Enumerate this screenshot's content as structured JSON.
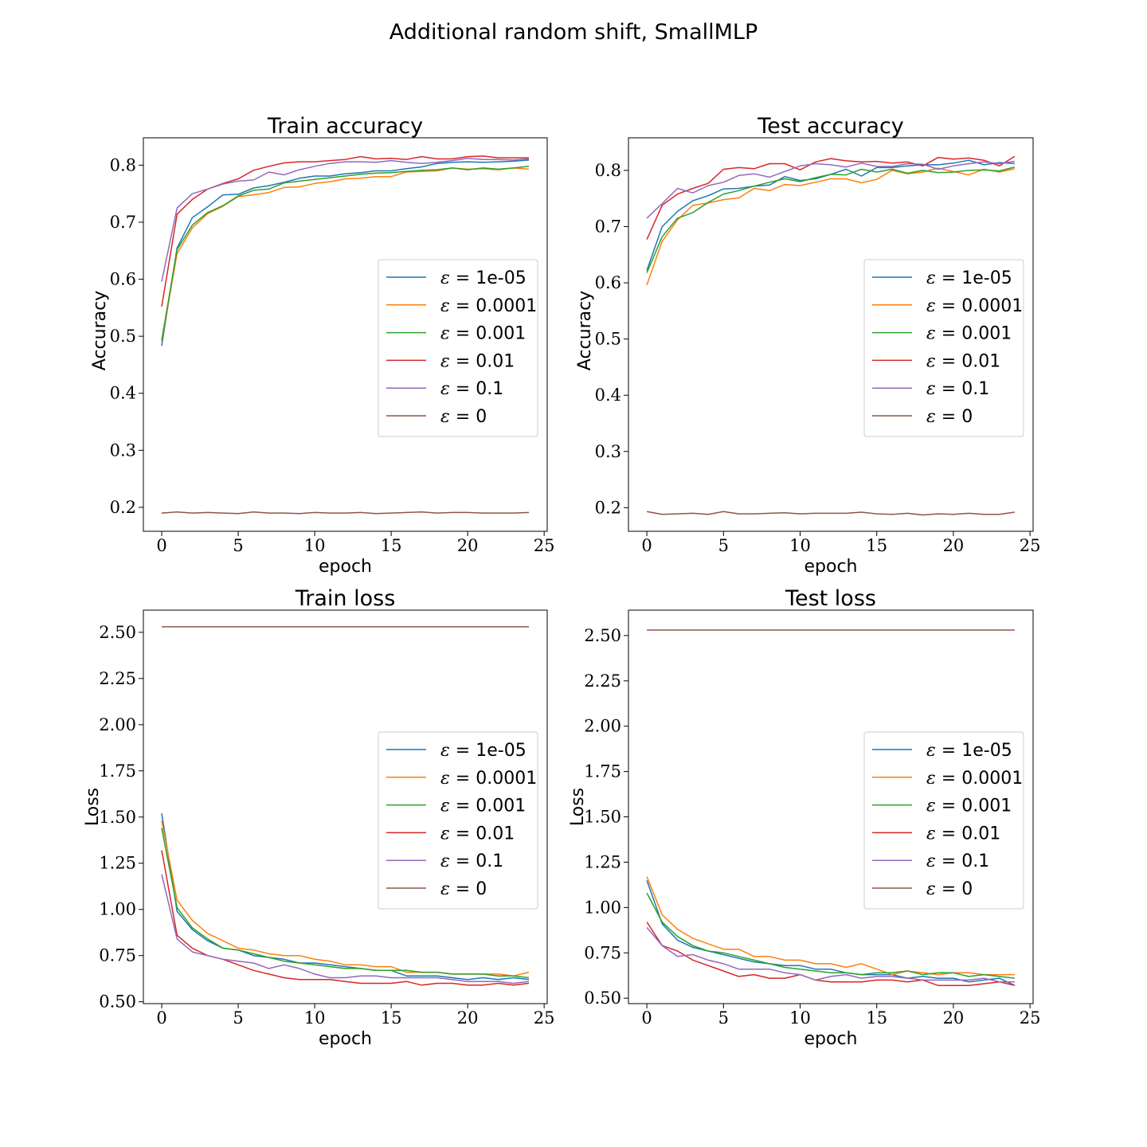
{
  "figure": {
    "title": "Additional random shift, SmallMLP"
  },
  "legend_entries": [
    {
      "symbol": "ε",
      "eq": " = ",
      "value": "1e-05",
      "color": "#1f77b4"
    },
    {
      "symbol": "ε",
      "eq": " = ",
      "value": "0.0001",
      "color": "#ff7f0e"
    },
    {
      "symbol": "ε",
      "eq": " = ",
      "value": "0.001",
      "color": "#2ca02c"
    },
    {
      "symbol": "ε",
      "eq": " = ",
      "value": "0.01",
      "color": "#d62728"
    },
    {
      "symbol": "ε",
      "eq": " = ",
      "value": "0.1",
      "color": "#9467bd"
    },
    {
      "symbol": "ε",
      "eq": " = ",
      "value": "0",
      "color": "#8c564b"
    }
  ],
  "chart_data": [
    {
      "id": "train_acc",
      "type": "line",
      "title": "Train accuracy",
      "xlabel": "epoch",
      "ylabel": "Accuracy",
      "xlim": [
        -1.2,
        25.2
      ],
      "ylim": [
        0.158,
        0.848
      ],
      "xticks": [
        0,
        5,
        10,
        15,
        20,
        25
      ],
      "yticks": [
        0.2,
        0.3,
        0.4,
        0.5,
        0.6,
        0.7,
        0.8
      ],
      "ytick_labels": [
        "0.2",
        "0.3",
        "0.4",
        "0.5",
        "0.6",
        "0.7",
        "0.8"
      ],
      "legend": "center-right",
      "x": [
        0,
        1,
        2,
        3,
        4,
        5,
        6,
        7,
        8,
        9,
        10,
        11,
        12,
        13,
        14,
        15,
        16,
        17,
        18,
        19,
        20,
        21,
        22,
        23,
        24
      ],
      "series": [
        {
          "name": "1e-05",
          "color": "#1f77b4",
          "values": [
            0.483,
            0.655,
            0.708,
            0.727,
            0.748,
            0.749,
            0.76,
            0.764,
            0.77,
            0.777,
            0.781,
            0.781,
            0.785,
            0.787,
            0.79,
            0.79,
            0.794,
            0.797,
            0.803,
            0.805,
            0.806,
            0.805,
            0.806,
            0.807,
            0.809
          ]
        },
        {
          "name": "0.0001",
          "color": "#ff7f0e",
          "values": [
            0.49,
            0.645,
            0.69,
            0.715,
            0.728,
            0.745,
            0.748,
            0.752,
            0.761,
            0.762,
            0.768,
            0.771,
            0.776,
            0.777,
            0.78,
            0.78,
            0.788,
            0.789,
            0.79,
            0.795,
            0.793,
            0.794,
            0.792,
            0.795,
            0.793
          ]
        },
        {
          "name": "0.001",
          "color": "#2ca02c",
          "values": [
            0.493,
            0.652,
            0.695,
            0.717,
            0.729,
            0.746,
            0.756,
            0.758,
            0.769,
            0.772,
            0.775,
            0.778,
            0.781,
            0.784,
            0.786,
            0.787,
            0.789,
            0.791,
            0.792,
            0.795,
            0.792,
            0.795,
            0.793,
            0.795,
            0.798
          ]
        },
        {
          "name": "0.01",
          "color": "#d62728",
          "values": [
            0.552,
            0.714,
            0.74,
            0.758,
            0.768,
            0.776,
            0.791,
            0.798,
            0.804,
            0.806,
            0.806,
            0.808,
            0.81,
            0.815,
            0.811,
            0.812,
            0.81,
            0.815,
            0.811,
            0.811,
            0.815,
            0.816,
            0.813,
            0.813,
            0.813
          ]
        },
        {
          "name": "0.1",
          "color": "#9467bd",
          "values": [
            0.596,
            0.725,
            0.75,
            0.758,
            0.767,
            0.772,
            0.774,
            0.788,
            0.783,
            0.792,
            0.798,
            0.803,
            0.806,
            0.806,
            0.805,
            0.808,
            0.805,
            0.803,
            0.805,
            0.808,
            0.812,
            0.81,
            0.81,
            0.809,
            0.811
          ]
        },
        {
          "name": "0",
          "color": "#8c564b",
          "values": [
            0.19,
            0.192,
            0.19,
            0.191,
            0.19,
            0.189,
            0.192,
            0.19,
            0.19,
            0.189,
            0.191,
            0.19,
            0.19,
            0.191,
            0.189,
            0.19,
            0.191,
            0.192,
            0.19,
            0.191,
            0.191,
            0.19,
            0.19,
            0.19,
            0.191
          ]
        }
      ]
    },
    {
      "id": "test_acc",
      "type": "line",
      "title": "Test accuracy",
      "xlabel": "epoch",
      "ylabel": "Accuracy",
      "xlim": [
        -1.2,
        25.2
      ],
      "ylim": [
        0.158,
        0.858
      ],
      "xticks": [
        0,
        5,
        10,
        15,
        20,
        25
      ],
      "yticks": [
        0.2,
        0.3,
        0.4,
        0.5,
        0.6,
        0.7,
        0.8
      ],
      "ytick_labels": [
        "0.2",
        "0.3",
        "0.4",
        "0.5",
        "0.6",
        "0.7",
        "0.8"
      ],
      "legend": "center-right",
      "x": [
        0,
        1,
        2,
        3,
        4,
        5,
        6,
        7,
        8,
        9,
        10,
        11,
        12,
        13,
        14,
        15,
        16,
        17,
        18,
        19,
        20,
        21,
        22,
        23,
        24
      ],
      "series": [
        {
          "name": "1e-05",
          "color": "#1f77b4",
          "values": [
            0.622,
            0.7,
            0.727,
            0.746,
            0.755,
            0.767,
            0.768,
            0.772,
            0.774,
            0.789,
            0.782,
            0.785,
            0.793,
            0.802,
            0.79,
            0.805,
            0.805,
            0.808,
            0.81,
            0.81,
            0.813,
            0.818,
            0.81,
            0.814,
            0.812
          ]
        },
        {
          "name": "0.0001",
          "color": "#ff7f0e",
          "values": [
            0.596,
            0.674,
            0.712,
            0.738,
            0.742,
            0.748,
            0.751,
            0.768,
            0.764,
            0.775,
            0.773,
            0.779,
            0.785,
            0.785,
            0.778,
            0.784,
            0.8,
            0.794,
            0.797,
            0.804,
            0.798,
            0.792,
            0.802,
            0.797,
            0.803
          ]
        },
        {
          "name": "0.001",
          "color": "#2ca02c",
          "values": [
            0.618,
            0.682,
            0.715,
            0.725,
            0.743,
            0.758,
            0.764,
            0.772,
            0.779,
            0.785,
            0.78,
            0.787,
            0.793,
            0.792,
            0.802,
            0.797,
            0.802,
            0.795,
            0.8,
            0.796,
            0.797,
            0.8,
            0.801,
            0.799,
            0.806
          ]
        },
        {
          "name": "0.01",
          "color": "#d62728",
          "values": [
            0.677,
            0.738,
            0.758,
            0.768,
            0.777,
            0.802,
            0.805,
            0.803,
            0.812,
            0.812,
            0.801,
            0.815,
            0.821,
            0.817,
            0.815,
            0.816,
            0.813,
            0.815,
            0.808,
            0.823,
            0.82,
            0.822,
            0.818,
            0.808,
            0.825
          ]
        },
        {
          "name": "0.1",
          "color": "#9467bd",
          "values": [
            0.715,
            0.741,
            0.768,
            0.76,
            0.773,
            0.779,
            0.791,
            0.794,
            0.788,
            0.798,
            0.808,
            0.812,
            0.81,
            0.806,
            0.813,
            0.807,
            0.807,
            0.812,
            0.811,
            0.802,
            0.808,
            0.812,
            0.815,
            0.812,
            0.816
          ]
        },
        {
          "name": "0",
          "color": "#8c564b",
          "values": [
            0.193,
            0.188,
            0.189,
            0.19,
            0.188,
            0.193,
            0.189,
            0.189,
            0.19,
            0.191,
            0.189,
            0.19,
            0.19,
            0.19,
            0.192,
            0.189,
            0.188,
            0.19,
            0.187,
            0.189,
            0.188,
            0.19,
            0.188,
            0.188,
            0.192
          ]
        }
      ]
    },
    {
      "id": "train_loss",
      "type": "line",
      "title": "Train loss",
      "xlabel": "epoch",
      "ylabel": "Loss",
      "xlim": [
        -1.2,
        25.2
      ],
      "ylim": [
        0.49,
        2.62
      ],
      "xticks": [
        0,
        5,
        10,
        15,
        20,
        25
      ],
      "yticks": [
        0.5,
        0.75,
        1.0,
        1.25,
        1.5,
        1.75,
        2.0,
        2.25,
        2.5
      ],
      "ytick_labels": [
        "0.50",
        "0.75",
        "1.00",
        "1.25",
        "1.50",
        "1.75",
        "2.00",
        "2.25",
        "2.50"
      ],
      "legend": "center-right",
      "x": [
        0,
        1,
        2,
        3,
        4,
        5,
        6,
        7,
        8,
        9,
        10,
        11,
        12,
        13,
        14,
        15,
        16,
        17,
        18,
        19,
        20,
        21,
        22,
        23,
        24
      ],
      "series": [
        {
          "name": "1e-05",
          "color": "#1f77b4",
          "values": [
            1.52,
            0.99,
            0.89,
            0.83,
            0.79,
            0.78,
            0.75,
            0.74,
            0.73,
            0.71,
            0.71,
            0.7,
            0.69,
            0.68,
            0.67,
            0.67,
            0.64,
            0.64,
            0.64,
            0.63,
            0.62,
            0.63,
            0.62,
            0.63,
            0.62
          ]
        },
        {
          "name": "0.0001",
          "color": "#ff7f0e",
          "values": [
            1.48,
            1.05,
            0.94,
            0.87,
            0.83,
            0.79,
            0.78,
            0.76,
            0.75,
            0.75,
            0.73,
            0.72,
            0.7,
            0.7,
            0.69,
            0.69,
            0.66,
            0.66,
            0.66,
            0.65,
            0.65,
            0.65,
            0.65,
            0.64,
            0.66
          ]
        },
        {
          "name": "0.001",
          "color": "#2ca02c",
          "values": [
            1.44,
            1.01,
            0.9,
            0.84,
            0.79,
            0.78,
            0.76,
            0.74,
            0.72,
            0.71,
            0.7,
            0.69,
            0.68,
            0.68,
            0.67,
            0.67,
            0.67,
            0.66,
            0.66,
            0.65,
            0.65,
            0.65,
            0.64,
            0.64,
            0.63
          ]
        },
        {
          "name": "0.01",
          "color": "#d62728",
          "values": [
            1.32,
            0.86,
            0.79,
            0.75,
            0.73,
            0.7,
            0.67,
            0.65,
            0.63,
            0.62,
            0.62,
            0.62,
            0.61,
            0.6,
            0.6,
            0.6,
            0.61,
            0.59,
            0.6,
            0.6,
            0.59,
            0.59,
            0.6,
            0.59,
            0.6
          ]
        },
        {
          "name": "0.1",
          "color": "#9467bd",
          "values": [
            1.19,
            0.84,
            0.77,
            0.75,
            0.73,
            0.72,
            0.71,
            0.68,
            0.7,
            0.68,
            0.65,
            0.63,
            0.63,
            0.64,
            0.64,
            0.63,
            0.63,
            0.63,
            0.63,
            0.62,
            0.61,
            0.61,
            0.61,
            0.6,
            0.61
          ]
        },
        {
          "name": "0",
          "color": "#8c564b",
          "values": [
            2.53,
            2.53,
            2.53,
            2.53,
            2.53,
            2.53,
            2.53,
            2.53,
            2.53,
            2.53,
            2.53,
            2.53,
            2.53,
            2.53,
            2.53,
            2.53,
            2.53,
            2.53,
            2.53,
            2.53,
            2.53,
            2.53,
            2.53,
            2.53,
            2.53
          ]
        }
      ]
    },
    {
      "id": "test_loss",
      "type": "line",
      "title": "Test loss",
      "xlabel": "epoch",
      "ylabel": "Loss",
      "xlim": [
        -1.2,
        25.2
      ],
      "ylim": [
        0.47,
        2.64
      ],
      "xticks": [
        0,
        5,
        10,
        15,
        20,
        25
      ],
      "yticks": [
        0.5,
        0.75,
        1.0,
        1.25,
        1.5,
        1.75,
        2.0,
        2.25,
        2.5
      ],
      "ytick_labels": [
        "0.50",
        "0.75",
        "1.00",
        "1.25",
        "1.50",
        "1.75",
        "2.00",
        "2.25",
        "2.50"
      ],
      "legend": "center-right",
      "x": [
        0,
        1,
        2,
        3,
        4,
        5,
        6,
        7,
        8,
        9,
        10,
        11,
        12,
        13,
        14,
        15,
        16,
        17,
        18,
        19,
        20,
        21,
        22,
        23,
        24
      ],
      "series": [
        {
          "name": "1e-05",
          "color": "#1f77b4",
          "values": [
            1.15,
            0.91,
            0.82,
            0.78,
            0.76,
            0.74,
            0.72,
            0.7,
            0.69,
            0.68,
            0.68,
            0.66,
            0.66,
            0.64,
            0.63,
            0.63,
            0.63,
            0.61,
            0.62,
            0.61,
            0.61,
            0.59,
            0.6,
            0.61,
            0.57
          ]
        },
        {
          "name": "0.0001",
          "color": "#ff7f0e",
          "values": [
            1.17,
            0.96,
            0.88,
            0.83,
            0.8,
            0.77,
            0.77,
            0.73,
            0.73,
            0.71,
            0.71,
            0.69,
            0.69,
            0.67,
            0.69,
            0.66,
            0.63,
            0.65,
            0.64,
            0.63,
            0.64,
            0.64,
            0.63,
            0.63,
            0.63
          ]
        },
        {
          "name": "0.001",
          "color": "#2ca02c",
          "values": [
            1.08,
            0.92,
            0.84,
            0.79,
            0.76,
            0.75,
            0.73,
            0.71,
            0.69,
            0.67,
            0.66,
            0.65,
            0.64,
            0.64,
            0.63,
            0.64,
            0.64,
            0.65,
            0.63,
            0.64,
            0.64,
            0.62,
            0.63,
            0.62,
            0.61
          ]
        },
        {
          "name": "0.01",
          "color": "#d62728",
          "values": [
            0.92,
            0.79,
            0.76,
            0.71,
            0.68,
            0.65,
            0.62,
            0.63,
            0.61,
            0.61,
            0.63,
            0.6,
            0.59,
            0.59,
            0.59,
            0.6,
            0.6,
            0.59,
            0.6,
            0.57,
            0.57,
            0.57,
            0.58,
            0.59,
            0.57
          ]
        },
        {
          "name": "0.1",
          "color": "#9467bd",
          "values": [
            0.89,
            0.79,
            0.73,
            0.74,
            0.71,
            0.69,
            0.66,
            0.66,
            0.66,
            0.64,
            0.63,
            0.6,
            0.62,
            0.63,
            0.61,
            0.62,
            0.62,
            0.61,
            0.6,
            0.6,
            0.6,
            0.6,
            0.61,
            0.59,
            0.59
          ]
        },
        {
          "name": "0",
          "color": "#8c564b",
          "values": [
            2.53,
            2.53,
            2.53,
            2.53,
            2.53,
            2.53,
            2.53,
            2.53,
            2.53,
            2.53,
            2.53,
            2.53,
            2.53,
            2.53,
            2.53,
            2.53,
            2.53,
            2.53,
            2.53,
            2.53,
            2.53,
            2.53,
            2.53,
            2.53,
            2.53
          ]
        }
      ]
    }
  ]
}
